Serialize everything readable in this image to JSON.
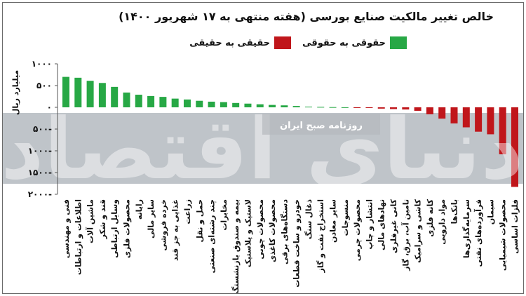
{
  "colors": {
    "positive": "#27a845",
    "negative": "#c0161b",
    "band": "#bfc4c9"
  },
  "legend": {
    "positive_label": "حقوقی به حقوقی",
    "negative_label": "حقیقی به حقیقی"
  },
  "watermark": {
    "main": "دنیای اقتصاد",
    "tag": "روزنامه صبح ایران"
  },
  "chart_data": {
    "type": "bar",
    "title": "خالص تغییر مالکیت صنایع بورسی (هفته منتهی به ۱۷ شهریور ۱۴۰۰)",
    "ylabel": "میلیارد ریال",
    "ylim": [
      -2000,
      1000
    ],
    "yticks": [
      -2000,
      -1500,
      -1000,
      -500,
      0,
      500,
      1000
    ],
    "ytick_labels": [
      "۲۰۰۰-",
      "۱۵۰۰-",
      "۱۰۰۰-",
      "۵۰۰-",
      "۰",
      "۵۰۰",
      "۱۰۰۰"
    ],
    "grid": false,
    "legend_position": "top",
    "categories": [
      "فنی و مهندسی",
      "اطلاعات و ارتباطات",
      "ماشین آلات",
      "قند و شکر",
      "وسایل ارتباطی",
      "محصولات فلزی",
      "رایانه",
      "سایر مالی",
      "خرده فروشی",
      "غذایی به جز قند",
      "زراعت",
      "حمل و نقل",
      "چند رشته‌ای صنعتی",
      "مخابرات",
      "بیمه و صندوق بازنشستگی",
      "لاستیک و پلاستیک",
      "محصولات چوبی",
      "محصولات کاغذی",
      "دستگاه‌های برقی",
      "خودرو و ساخت قطعات",
      "ذغال سنگ",
      "استخراج نفت و گاز",
      "سایر معادن",
      "منسوجات",
      "محصولات چرمی",
      "انتشار و چاپ",
      "نهادهای مالی",
      "کانی غیرفلزی",
      "تامین آب، برق، گاز",
      "کاشی و سرامیک",
      "کانه فلزی",
      "مواد دارویی",
      "بانک‌ها",
      "سرمایه‌گذاری‌ها",
      "فرآورده‌های نفتی",
      "سیمان",
      "محصولات شیمیایی",
      "فلزات اساسی"
    ],
    "values": [
      700,
      680,
      610,
      560,
      470,
      340,
      290,
      260,
      240,
      200,
      180,
      150,
      130,
      120,
      100,
      85,
      70,
      55,
      45,
      30,
      15,
      10,
      5,
      2,
      -5,
      -10,
      -30,
      -40,
      -50,
      -80,
      -160,
      -260,
      -370,
      -460,
      -560,
      -620,
      -1080,
      -1830
    ]
  }
}
